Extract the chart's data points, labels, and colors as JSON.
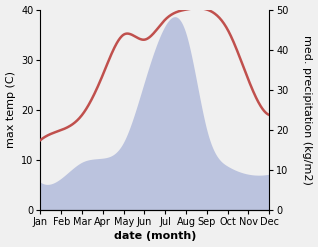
{
  "months": [
    "Jan",
    "Feb",
    "Mar",
    "Apr",
    "May",
    "Jun",
    "Jul",
    "Aug",
    "Sep",
    "Oct",
    "Nov",
    "Dec"
  ],
  "month_x": [
    1,
    2,
    3,
    4,
    5,
    6,
    7,
    8,
    9,
    10,
    11,
    12
  ],
  "temperature": [
    14,
    16,
    19,
    27,
    35,
    34,
    38,
    40,
    40,
    36,
    26,
    19
  ],
  "precipitation": [
    7,
    8,
    12,
    13,
    17,
    32,
    46,
    44,
    20,
    11,
    9,
    9
  ],
  "temp_color": "#c0504d",
  "precip_color": "#aab4d8",
  "temp_ylim": [
    0,
    40
  ],
  "precip_ylim": [
    0,
    50
  ],
  "temp_yticks": [
    0,
    10,
    20,
    30,
    40
  ],
  "precip_yticks": [
    0,
    10,
    20,
    30,
    40,
    50
  ],
  "xlabel": "date (month)",
  "ylabel_left": "max temp (C)",
  "ylabel_right": "med. precipitation (kg/m2)",
  "bg_color": "#f0f0f0",
  "plot_bg_color": "#ffffff",
  "axis_fontsize": 8,
  "tick_fontsize": 7,
  "line_width": 1.8
}
